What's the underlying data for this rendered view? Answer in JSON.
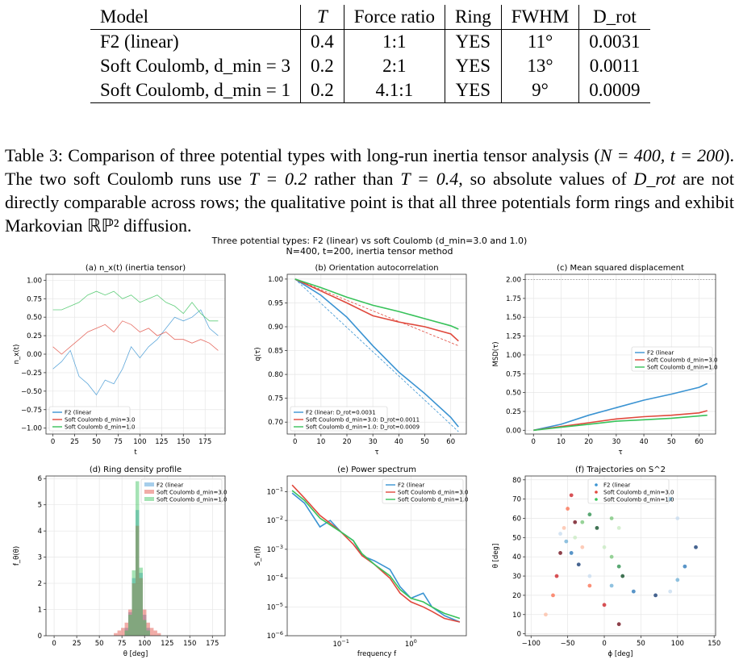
{
  "table": {
    "headers": [
      "Model",
      "T",
      "Force ratio",
      "Ring",
      "FWHM",
      "D_rot"
    ],
    "rows": [
      {
        "model": "F2 (linear)",
        "T": "0.4",
        "force_ratio": "1:1",
        "ring": "YES",
        "fwhm": "11°",
        "drot": "0.0031"
      },
      {
        "model": "Soft Coulomb, d_min = 3",
        "T": "0.2",
        "force_ratio": "2:1",
        "ring": "YES",
        "fwhm": "13°",
        "drot": "0.0011"
      },
      {
        "model": "Soft Coulomb, d_min = 1",
        "T": "0.2",
        "force_ratio": "4.1:1",
        "ring": "YES",
        "fwhm": "9°",
        "drot": "0.0009"
      }
    ]
  },
  "caption": {
    "p1": "Table 3: Comparison of three potential types with long-run inertia tensor analysis (",
    "p2": "N = 400, t = 200",
    "p3": "). The two soft Coulomb runs use ",
    "p4": "T = 0.2",
    "p5": " rather than ",
    "p6": "T = 0.4",
    "p7": ", so absolute values of ",
    "p8": "D_rot",
    "p9": " are not directly comparable across rows; the qualitative point is that all three potentials form rings and exhibit Markovian ",
    "p10": "ℝℙ²",
    "p11": " diffusion."
  },
  "figure": {
    "suptitle_line1": "Three potential types: F2 (linear) vs soft Coulomb (d_min=3.0 and 1.0)",
    "suptitle_line2": "N=400, t=200, inertia tensor method",
    "colors": {
      "f2": "#3a93d2",
      "c3": "#e0483c",
      "c1": "#38c25a"
    }
  },
  "chart_data": [
    {
      "type": "line",
      "title": "(a) n_x(t) (inertia tensor)",
      "xlabel": "t",
      "ylabel": "n_x(t)",
      "xlim": [
        -8,
        198
      ],
      "ylim": [
        -1.08,
        1.08
      ],
      "xticks": [
        "0",
        "25",
        "50",
        "75",
        "100",
        "125",
        "150",
        "175"
      ],
      "yticks": [
        "1.00",
        "0.75",
        "0.50",
        "0.25",
        "0.00",
        "−0.25",
        "−0.50",
        "−0.75",
        "−1.00"
      ],
      "legend_position": "lower-left",
      "series": [
        {
          "name": "F2 (linear",
          "x": [
            0,
            10,
            20,
            30,
            40,
            50,
            60,
            70,
            80,
            90,
            100,
            110,
            120,
            130,
            140,
            150,
            160,
            170,
            180,
            190
          ],
          "values": [
            -0.2,
            -0.1,
            0.05,
            -0.3,
            -0.4,
            -0.55,
            -0.35,
            -0.4,
            -0.2,
            0.1,
            -0.05,
            0.1,
            0.2,
            0.35,
            0.5,
            0.45,
            0.5,
            0.6,
            0.35,
            0.25
          ]
        },
        {
          "name": "Soft Coulomb d_min=3.0",
          "x": [
            0,
            10,
            20,
            30,
            40,
            50,
            60,
            70,
            80,
            90,
            100,
            110,
            120,
            130,
            140,
            150,
            160,
            170,
            180,
            190
          ],
          "values": [
            0.1,
            0.0,
            0.1,
            0.2,
            0.3,
            0.35,
            0.4,
            0.3,
            0.45,
            0.4,
            0.3,
            0.35,
            0.25,
            0.3,
            0.2,
            0.2,
            0.15,
            0.2,
            0.15,
            0.05
          ]
        },
        {
          "name": "Soft Coulomb d_min=1.0",
          "x": [
            0,
            10,
            20,
            30,
            40,
            50,
            60,
            70,
            80,
            90,
            100,
            110,
            120,
            130,
            140,
            150,
            160,
            170,
            180,
            190
          ],
          "values": [
            0.6,
            0.6,
            0.65,
            0.7,
            0.8,
            0.85,
            0.8,
            0.85,
            0.75,
            0.8,
            0.7,
            0.75,
            0.8,
            0.7,
            0.65,
            0.55,
            0.7,
            0.55,
            0.45,
            0.45
          ]
        }
      ]
    },
    {
      "type": "line",
      "title": "(b) Orientation autocorrelation",
      "xlabel": "τ",
      "ylabel": "q(τ)",
      "xlim": [
        -3,
        66
      ],
      "ylim": [
        0.675,
        1.01
      ],
      "xticks": [
        "0",
        "10",
        "20",
        "30",
        "40",
        "50",
        "60"
      ],
      "yticks": [
        "1.00",
        "0.95",
        "0.90",
        "0.85",
        "0.80",
        "0.75",
        "0.70"
      ],
      "legend_position": "lower-left",
      "series": [
        {
          "name": "F2 (linear: D_rot=0.0031",
          "x": [
            0,
            10,
            20,
            30,
            40,
            50,
            60,
            63
          ],
          "values": [
            1.0,
            0.966,
            0.92,
            0.86,
            0.805,
            0.76,
            0.71,
            0.69
          ]
        },
        {
          "name": "Soft Coulomb d_min=3.0: D_rot=0.0011",
          "x": [
            0,
            10,
            20,
            30,
            40,
            50,
            60,
            63
          ],
          "values": [
            1.0,
            0.975,
            0.95,
            0.923,
            0.91,
            0.9,
            0.885,
            0.87
          ]
        },
        {
          "name": "Soft Coulomb d_min=1.0: D_rot=0.0009",
          "x": [
            0,
            10,
            20,
            30,
            40,
            50,
            60,
            63
          ],
          "values": [
            1.0,
            0.982,
            0.962,
            0.945,
            0.932,
            0.917,
            0.902,
            0.895
          ]
        }
      ]
    },
    {
      "type": "line",
      "title": "(c) Mean squared displacement",
      "xlabel": "τ",
      "ylabel": "MSD(τ)",
      "xlim": [
        -3,
        66
      ],
      "ylim": [
        -0.05,
        2.07
      ],
      "xticks": [
        "0",
        "10",
        "20",
        "30",
        "40",
        "50",
        "60"
      ],
      "yticks": [
        "2.00",
        "1.75",
        "1.50",
        "1.25",
        "1.00",
        "0.75",
        "0.50",
        "0.25",
        "0.00"
      ],
      "legend_position": "center-right",
      "series": [
        {
          "name": "F2 (linear",
          "x": [
            0,
            10,
            20,
            30,
            40,
            50,
            60,
            63
          ],
          "values": [
            0,
            0.08,
            0.2,
            0.3,
            0.4,
            0.48,
            0.57,
            0.62
          ]
        },
        {
          "name": "Soft Coulomb d_min=3.0",
          "x": [
            0,
            10,
            20,
            30,
            40,
            50,
            60,
            63
          ],
          "values": [
            0,
            0.05,
            0.1,
            0.15,
            0.18,
            0.2,
            0.23,
            0.26
          ]
        },
        {
          "name": "Soft Coulomb d_min=1.0",
          "x": [
            0,
            10,
            20,
            30,
            40,
            50,
            60,
            63
          ],
          "values": [
            0,
            0.04,
            0.08,
            0.12,
            0.14,
            0.16,
            0.19,
            0.2
          ]
        }
      ]
    },
    {
      "type": "bar",
      "title": "(d) Ring density profile",
      "xlabel": "θ [deg]",
      "ylabel": "f_θ(θ)",
      "xlim": [
        -9,
        189
      ],
      "ylim": [
        0,
        6.1
      ],
      "xticks": [
        "0",
        "25",
        "50",
        "75",
        "100",
        "125",
        "150",
        "175"
      ],
      "yticks": [
        "6",
        "5",
        "4",
        "3",
        "2",
        "1",
        "0"
      ],
      "legend_position": "upper-right",
      "bins": [
        66,
        70,
        74,
        78,
        82,
        86,
        90,
        94,
        98,
        102,
        106,
        110,
        114,
        118
      ],
      "series": [
        {
          "name": "F2 (linear",
          "values": [
            0,
            0,
            0,
            0.3,
            0.9,
            2.2,
            4.8,
            2.4,
            0.8,
            0.3,
            0,
            0,
            0,
            0
          ]
        },
        {
          "name": "Soft Coulomb d_min=3.0",
          "values": [
            0.1,
            0.2,
            0.3,
            0.5,
            1.0,
            2.0,
            4.2,
            2.2,
            1.0,
            0.5,
            0.3,
            0.2,
            0.1,
            0
          ]
        },
        {
          "name": "Soft Coulomb d_min=1.0",
          "values": [
            0,
            0,
            0,
            0.2,
            0.8,
            2.5,
            5.9,
            2.6,
            0.6,
            0.2,
            0,
            0,
            0,
            0
          ]
        }
      ]
    },
    {
      "type": "line",
      "title": "(e) Power spectrum",
      "xlabel": "frequency f",
      "ylabel": "S_n(f)",
      "xscale": "log",
      "yscale": "log",
      "xlim": [
        0.017,
        6.2
      ],
      "ylim": [
        1e-06,
        0.35
      ],
      "xticks": [
        "10^-1",
        "10^0"
      ],
      "yticks": [
        "10^-1",
        "10^-2",
        "10^-3",
        "10^-4",
        "10^-5",
        "10^-6"
      ],
      "legend_position": "top-right",
      "series": [
        {
          "name": "F2 (linear",
          "x": [
            0.02,
            0.03,
            0.05,
            0.07,
            0.1,
            0.15,
            0.2,
            0.3,
            0.5,
            0.7,
            1,
            1.5,
            2,
            3,
            5
          ],
          "values": [
            0.09,
            0.04,
            0.006,
            0.01,
            0.004,
            0.002,
            0.0006,
            0.0004,
            0.0002,
            5e-05,
            2e-05,
            3e-05,
            1e-05,
            5e-06,
            3e-06
          ]
        },
        {
          "name": "Soft Coulomb d_min=3.0",
          "x": [
            0.02,
            0.03,
            0.05,
            0.07,
            0.1,
            0.15,
            0.2,
            0.3,
            0.5,
            0.7,
            1,
            1.5,
            2,
            3,
            5
          ],
          "values": [
            0.17,
            0.06,
            0.015,
            0.008,
            0.004,
            0.0015,
            0.0006,
            0.0003,
            0.0001,
            3e-05,
            1.5e-05,
            1e-05,
            7e-06,
            4e-06,
            3e-06
          ]
        },
        {
          "name": "Soft Coulomb d_min=1.0",
          "x": [
            0.02,
            0.03,
            0.05,
            0.07,
            0.1,
            0.15,
            0.2,
            0.3,
            0.5,
            0.7,
            1,
            1.5,
            2,
            3,
            5
          ],
          "values": [
            0.11,
            0.05,
            0.012,
            0.007,
            0.004,
            0.002,
            0.0007,
            0.0003,
            0.00012,
            4e-05,
            2e-05,
            1.5e-05,
            1e-05,
            6e-06,
            4e-06
          ]
        }
      ]
    },
    {
      "type": "scatter",
      "title": "(f) Trajectories on S^2",
      "xlabel": "ϕ [deg]",
      "ylabel": "θ [deg]",
      "xlim": [
        -108,
        152
      ],
      "ylim": [
        -1,
        82
      ],
      "xticks": [
        "−100",
        "−50",
        "0",
        "50",
        "100",
        "150"
      ],
      "yticks": [
        "80",
        "70",
        "60",
        "50",
        "40",
        "30",
        "20",
        "10",
        "0"
      ],
      "legend_position": "upper-center",
      "series": [
        {
          "name": "F2 (linear",
          "x": [
            -60,
            -52,
            -45,
            -35,
            -20,
            10,
            40,
            70,
            90,
            100,
            110,
            125,
            100,
            90
          ],
          "values": [
            52,
            48,
            42,
            36,
            30,
            25,
            22,
            20,
            22,
            28,
            35,
            45,
            60,
            70
          ]
        },
        {
          "name": "Soft Coulomb d_min=3.0",
          "x": [
            -80,
            -70,
            -65,
            -60,
            -55,
            -50,
            -45,
            -40,
            -30,
            -20,
            0,
            20
          ],
          "values": [
            10,
            20,
            30,
            42,
            55,
            65,
            72,
            58,
            45,
            25,
            15,
            5
          ]
        },
        {
          "name": "Soft Coulomb d_min=1.0",
          "x": [
            -40,
            -30,
            -20,
            -10,
            0,
            10,
            20,
            25,
            20,
            10
          ],
          "values": [
            50,
            58,
            62,
            55,
            45,
            40,
            35,
            30,
            55,
            60
          ]
        }
      ]
    }
  ]
}
